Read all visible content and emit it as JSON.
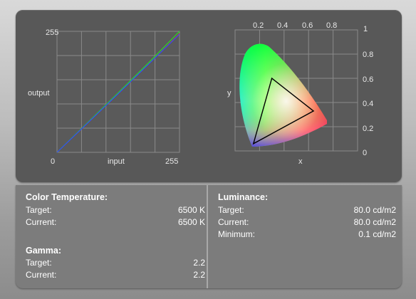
{
  "curves_chart": {
    "type": "line",
    "y_max_label": "255",
    "y_min_label": "0",
    "x_max_label": "255",
    "ylabel": "output",
    "xlabel": "input",
    "series_colors": [
      "#ff2a2a",
      "#22dd22",
      "#2a4cff"
    ]
  },
  "gamut_chart": {
    "xlabel": "x",
    "ylabel": "y",
    "top_ticks": [
      "0.2",
      "0.4",
      "0.6",
      "0.8",
      "1"
    ],
    "right_ticks": [
      "0.8",
      "0.6",
      "0.4",
      "0.2",
      "0"
    ]
  },
  "chart_data": [
    {
      "type": "line",
      "xlabel": "input",
      "ylabel": "output",
      "xlim": [
        0,
        255
      ],
      "ylim": [
        0,
        255
      ],
      "series": [
        {
          "color": "#ff2a2a",
          "x": [
            0,
            64,
            128,
            192,
            255
          ],
          "y": [
            0,
            62,
            124,
            187,
            250
          ]
        },
        {
          "color": "#22dd22",
          "x": [
            0,
            64,
            128,
            192,
            255
          ],
          "y": [
            0,
            63,
            126,
            190,
            255
          ]
        },
        {
          "color": "#2a4cff",
          "x": [
            0,
            64,
            128,
            192,
            255
          ],
          "y": [
            0,
            62,
            124,
            187,
            249
          ]
        }
      ]
    },
    {
      "type": "scatter",
      "xlabel": "x",
      "ylabel": "y",
      "xlim": [
        0,
        1
      ],
      "ylim": [
        0,
        1
      ],
      "gamut_triangle": {
        "x": [
          0.64,
          0.3,
          0.15
        ],
        "y": [
          0.33,
          0.6,
          0.06
        ]
      }
    }
  ],
  "color_temperature": {
    "title": "Color Temperature:",
    "rows": [
      {
        "label": "Target:",
        "value": "6500 K"
      },
      {
        "label": "Current:",
        "value": "6500 K"
      }
    ]
  },
  "gamma": {
    "title": "Gamma:",
    "rows": [
      {
        "label": "Target:",
        "value": "2.2"
      },
      {
        "label": "Current:",
        "value": "2.2"
      }
    ]
  },
  "luminance": {
    "title": "Luminance:",
    "rows": [
      {
        "label": "Target:",
        "value": "80.0 cd/m2"
      },
      {
        "label": "Current:",
        "value": "80.0 cd/m2"
      },
      {
        "label": "Minimum:",
        "value": "0.1 cd/m2"
      }
    ]
  }
}
